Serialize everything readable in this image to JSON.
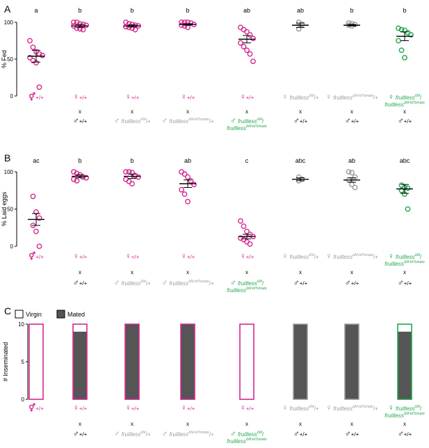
{
  "chart_data": [
    {
      "panel": "A",
      "type": "scatter",
      "ylabel": "% Fed",
      "ylim": [
        0,
        100
      ],
      "yticks": [
        0,
        50,
        100
      ],
      "sig": [
        "a",
        "b",
        "b",
        "b",
        "ab",
        "ab",
        "b",
        "b"
      ],
      "points": [
        [
          75,
          66,
          60,
          57,
          55,
          52,
          48,
          45,
          12
        ],
        [
          100,
          100,
          98,
          97,
          96,
          95,
          92,
          91,
          90
        ],
        [
          100,
          98,
          97,
          96,
          95,
          94,
          93,
          92,
          90
        ],
        [
          100,
          100,
          100,
          99,
          97,
          96,
          95,
          93
        ],
        [
          93,
          90,
          87,
          83,
          78,
          72,
          67,
          62,
          57,
          47
        ],
        [
          100,
          97,
          91
        ],
        [
          99,
          98,
          97,
          96,
          95
        ],
        [
          92,
          90,
          89,
          86,
          83,
          75,
          62,
          52
        ]
      ],
      "mean": [
        54,
        95,
        95,
        97,
        77,
        96,
        96,
        81
      ],
      "sem": [
        8,
        2,
        1.5,
        1,
        5,
        3,
        1,
        6
      ]
    },
    {
      "panel": "B",
      "type": "scatter",
      "ylabel": "% Laid eggs",
      "ylim": [
        0,
        100
      ],
      "yticks": [
        0,
        50,
        100
      ],
      "sig": [
        "ac",
        "b",
        "b",
        "ab",
        "c",
        "abc",
        "ab",
        "abc"
      ],
      "points": [
        [
          67,
          46,
          38,
          28,
          20,
          0
        ],
        [
          100,
          98,
          96,
          93,
          92,
          90,
          88
        ],
        [
          100,
          100,
          99,
          95,
          93,
          90,
          87,
          84
        ],
        [
          100,
          97,
          93,
          88,
          83,
          76,
          70,
          60
        ],
        [
          34,
          27,
          20,
          16,
          13,
          11,
          9,
          6,
          3
        ],
        [
          93,
          90,
          88
        ],
        [
          100,
          99,
          93,
          89,
          83,
          79
        ],
        [
          82,
          79,
          78,
          75,
          70,
          50
        ]
      ],
      "mean": [
        36,
        94,
        94,
        84,
        13,
        90,
        89,
        77
      ],
      "sem": [
        8,
        2,
        3,
        5,
        3,
        2,
        3,
        6
      ]
    },
    {
      "panel": "C",
      "type": "bar",
      "ylabel": "# Inseminated",
      "ylim": [
        0,
        10
      ],
      "yticks": [
        0,
        5,
        10
      ],
      "legend": [
        "Virgin",
        "Mated"
      ],
      "mated": [
        0,
        9,
        10,
        10,
        0,
        10,
        10,
        9
      ],
      "total": [
        10,
        10,
        10,
        10,
        10,
        10,
        10,
        10
      ]
    }
  ],
  "colors": {
    "magenta": "#d6268f",
    "gray": "#9a9a9a",
    "green": "#21a64a",
    "mated_fill": "#555555",
    "black": "#000000"
  },
  "rows": {
    "A": {
      "top": [
        {
          "sym": "⚥",
          "pre": "",
          "gene": "",
          "sup": "",
          "post": "+/+",
          "second": "",
          "sup2": "",
          "color": "magenta"
        },
        {
          "sym": "♀",
          "pre": "",
          "gene": "",
          "sup": "",
          "post": "+/+",
          "second": "",
          "sup2": "",
          "color": "magenta"
        },
        {
          "sym": "♀",
          "pre": "",
          "gene": "",
          "sup": "",
          "post": "+/+",
          "second": "",
          "sup2": "",
          "color": "magenta"
        },
        {
          "sym": "♀",
          "pre": "",
          "gene": "",
          "sup": "",
          "post": "+/+",
          "second": "",
          "sup2": "",
          "color": "magenta"
        },
        {
          "sym": "♀",
          "pre": "",
          "gene": "",
          "sup": "",
          "post": "+/+",
          "second": "",
          "sup2": "",
          "color": "magenta"
        },
        {
          "sym": "♀",
          "pre": " ",
          "gene": "fruitless",
          "sup": "ΔM",
          "post": "/+",
          "second": "",
          "sup2": "",
          "color": "gray"
        },
        {
          "sym": "♀",
          "pre": " ",
          "gene": "fruitless",
          "sup": "ΔM-tdTomato",
          "post": "/+",
          "second": "",
          "sup2": "",
          "color": "gray"
        },
        {
          "sym": "♀",
          "pre": " ",
          "gene": "fruitless",
          "sup": "ΔM",
          "post": "/",
          "second": "fruitless",
          "sup2": "ΔM-tdTomato",
          "color": "green"
        }
      ],
      "bottom": [
        {
          "sym": "",
          "pre": "",
          "gene": "",
          "sup": "",
          "post": "",
          "second": "",
          "sup2": "",
          "color": "black"
        },
        {
          "sym": "♂",
          "pre": "",
          "gene": "",
          "sup": "",
          "post": "+/+",
          "second": "",
          "sup2": "",
          "color": "black"
        },
        {
          "sym": "♂",
          "pre": " ",
          "gene": "fruitless",
          "sup": "ΔM",
          "post": "/+",
          "second": "",
          "sup2": "",
          "color": "gray"
        },
        {
          "sym": "♂",
          "pre": " ",
          "gene": "fruitless",
          "sup": "ΔM-tdTomato",
          "post": "/+",
          "second": "",
          "sup2": "",
          "color": "gray"
        },
        {
          "sym": "♂",
          "pre": " ",
          "gene": "fruitless",
          "sup": "ΔM",
          "post": "/",
          "second": "fruitless",
          "sup2": "ΔM-tdTomato",
          "color": "green"
        },
        {
          "sym": "♂",
          "pre": "",
          "gene": "",
          "sup": "",
          "post": "+/+",
          "second": "",
          "sup2": "",
          "color": "black"
        },
        {
          "sym": "♂",
          "pre": "",
          "gene": "",
          "sup": "",
          "post": "+/+",
          "second": "",
          "sup2": "",
          "color": "black"
        },
        {
          "sym": "♂",
          "pre": "",
          "gene": "",
          "sup": "",
          "post": "+/+",
          "second": "",
          "sup2": "",
          "color": "black"
        }
      ]
    },
    "B": {
      "top": [
        {
          "sym": "⚥",
          "pre": "",
          "gene": "",
          "sup": "",
          "post": "+/+",
          "second": "",
          "sup2": "",
          "color": "magenta"
        },
        {
          "sym": "♀",
          "pre": "",
          "gene": "",
          "sup": "",
          "post": "+/+",
          "second": "",
          "sup2": "",
          "color": "magenta"
        },
        {
          "sym": "♀",
          "pre": "",
          "gene": "",
          "sup": "",
          "post": "+/+",
          "second": "",
          "sup2": "",
          "color": "magenta"
        },
        {
          "sym": "♀",
          "pre": "",
          "gene": "",
          "sup": "",
          "post": "+/+",
          "second": "",
          "sup2": "",
          "color": "magenta"
        },
        {
          "sym": "♀",
          "pre": "",
          "gene": "",
          "sup": "",
          "post": "+/+",
          "second": "",
          "sup2": "",
          "color": "magenta"
        },
        {
          "sym": "♀",
          "pre": " ",
          "gene": "fruitless",
          "sup": "ΔM",
          "post": "/+",
          "second": "",
          "sup2": "",
          "color": "gray"
        },
        {
          "sym": "♀",
          "pre": " ",
          "gene": "fruitless",
          "sup": "ΔM-tdTomato",
          "post": "/+",
          "second": "",
          "sup2": "",
          "color": "gray"
        },
        {
          "sym": "♀",
          "pre": " ",
          "gene": "fruitless",
          "sup": "ΔM",
          "post": "/",
          "second": "fruitless",
          "sup2": "ΔM-tdTomato",
          "color": "green"
        }
      ],
      "bottom": [
        {
          "sym": "",
          "pre": "",
          "gene": "",
          "sup": "",
          "post": "",
          "second": "",
          "sup2": "",
          "color": "black"
        },
        {
          "sym": "♂",
          "pre": "",
          "gene": "",
          "sup": "",
          "post": "+/+",
          "second": "",
          "sup2": "",
          "color": "black"
        },
        {
          "sym": "♂",
          "pre": " ",
          "gene": "fruitless",
          "sup": "ΔM",
          "post": "/+",
          "second": "",
          "sup2": "",
          "color": "gray"
        },
        {
          "sym": "♂",
          "pre": " ",
          "gene": "fruitless",
          "sup": "ΔM-tdTomato",
          "post": "/+",
          "second": "",
          "sup2": "",
          "color": "gray"
        },
        {
          "sym": "♂",
          "pre": " ",
          "gene": "fruitless",
          "sup": "ΔM",
          "post": "/",
          "second": "fruitless",
          "sup2": "ΔM-tdTomato",
          "color": "green"
        },
        {
          "sym": "♂",
          "pre": "",
          "gene": "",
          "sup": "",
          "post": "+/+",
          "second": "",
          "sup2": "",
          "color": "black"
        },
        {
          "sym": "♂",
          "pre": "",
          "gene": "",
          "sup": "",
          "post": "+/+",
          "second": "",
          "sup2": "",
          "color": "black"
        },
        {
          "sym": "♂",
          "pre": "",
          "gene": "",
          "sup": "",
          "post": "+/+",
          "second": "",
          "sup2": "",
          "color": "black"
        }
      ]
    },
    "C": {
      "top": [
        {
          "sym": "⚥",
          "pre": "",
          "gene": "",
          "sup": "",
          "post": "+/+",
          "second": "",
          "sup2": "",
          "color": "magenta"
        },
        {
          "sym": "♀",
          "pre": "",
          "gene": "",
          "sup": "",
          "post": "+/+",
          "second": "",
          "sup2": "",
          "color": "magenta"
        },
        {
          "sym": "♀",
          "pre": "",
          "gene": "",
          "sup": "",
          "post": "+/+",
          "second": "",
          "sup2": "",
          "color": "magenta"
        },
        {
          "sym": "♀",
          "pre": "",
          "gene": "",
          "sup": "",
          "post": "+/+",
          "second": "",
          "sup2": "",
          "color": "magenta"
        },
        {
          "sym": "♀",
          "pre": "",
          "gene": "",
          "sup": "",
          "post": "+/+",
          "second": "",
          "sup2": "",
          "color": "magenta"
        },
        {
          "sym": "♀",
          "pre": " ",
          "gene": "fruitless",
          "sup": "ΔM",
          "post": "/+",
          "second": "",
          "sup2": "",
          "color": "gray"
        },
        {
          "sym": "♀",
          "pre": " ",
          "gene": "fruitless",
          "sup": "ΔM-tdTomato",
          "post": "/+",
          "second": "",
          "sup2": "",
          "color": "gray"
        },
        {
          "sym": "♀",
          "pre": " ",
          "gene": "fruitless",
          "sup": "ΔM",
          "post": "/",
          "second": "fruitless",
          "sup2": "ΔM-tdTomato",
          "color": "green"
        }
      ],
      "bottom": [
        {
          "sym": "",
          "pre": "",
          "gene": "",
          "sup": "",
          "post": "",
          "second": "",
          "sup2": "",
          "color": "black"
        },
        {
          "sym": "♂",
          "pre": "",
          "gene": "",
          "sup": "",
          "post": "+/+",
          "second": "",
          "sup2": "",
          "color": "black"
        },
        {
          "sym": "♂",
          "pre": " ",
          "gene": "fruitless",
          "sup": "ΔM",
          "post": "/+",
          "second": "",
          "sup2": "",
          "color": "gray"
        },
        {
          "sym": "♂",
          "pre": " ",
          "gene": "fruitless",
          "sup": "ΔM-tdTomato",
          "post": "/+",
          "second": "",
          "sup2": "",
          "color": "gray"
        },
        {
          "sym": "♂",
          "pre": " ",
          "gene": "fruitless",
          "sup": "ΔM",
          "post": "/",
          "second": "fruitless",
          "sup2": "ΔM-tdTomato",
          "color": "green"
        },
        {
          "sym": "♂",
          "pre": "",
          "gene": "",
          "sup": "",
          "post": "+/+",
          "second": "",
          "sup2": "",
          "color": "black"
        },
        {
          "sym": "♂",
          "pre": "",
          "gene": "",
          "sup": "",
          "post": "+/+",
          "second": "",
          "sup2": "",
          "color": "black"
        },
        {
          "sym": "♂",
          "pre": "",
          "gene": "",
          "sup": "",
          "post": "+/+",
          "second": "",
          "sup2": "",
          "color": "black"
        }
      ]
    }
  },
  "cross_symbol": "x",
  "cross_present": [
    false,
    true,
    true,
    true,
    true,
    true,
    true,
    true
  ]
}
